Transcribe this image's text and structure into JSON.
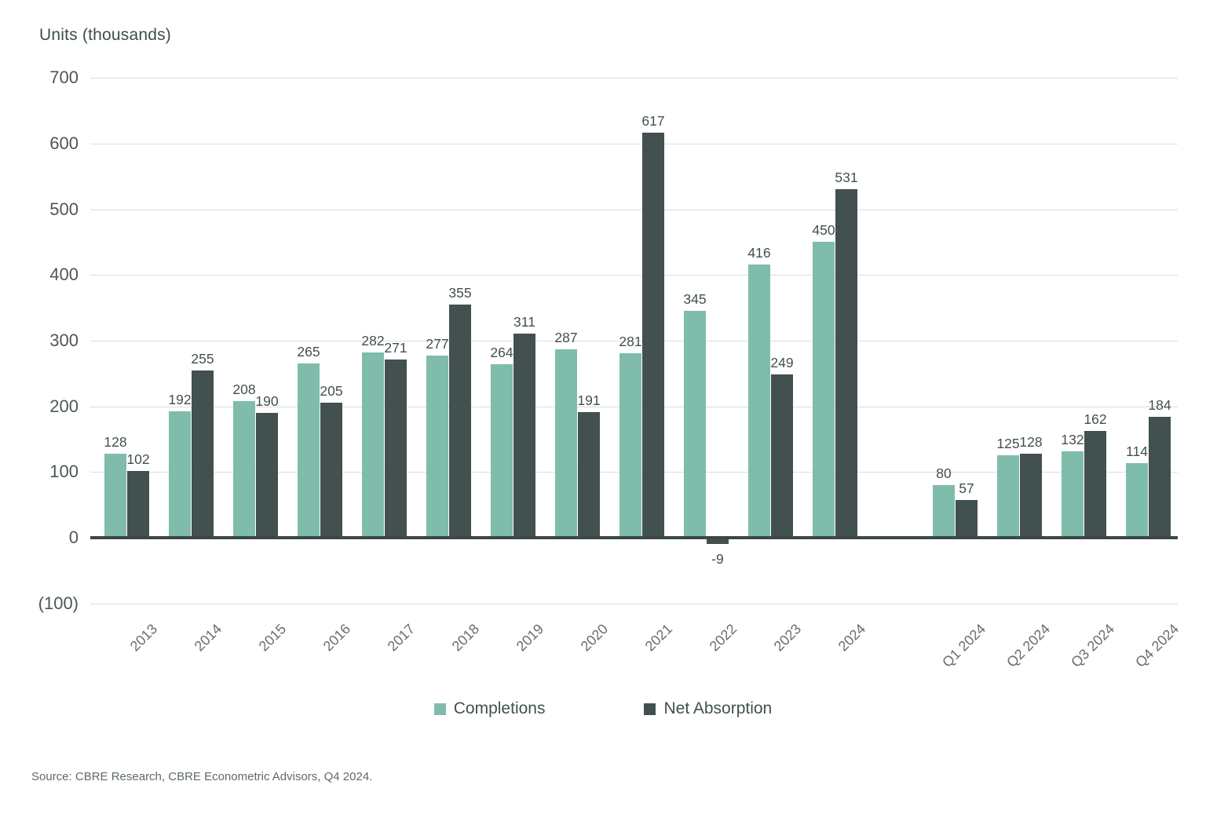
{
  "title": "Units (thousands)",
  "source": "Source: CBRE Research, CBRE Econometric Advisors, Q4 2024.",
  "legend": [
    {
      "label": "Completions",
      "color": "#7fbcac"
    },
    {
      "label": "Net Absorption",
      "color": "#42504f"
    }
  ],
  "chart_data": {
    "type": "bar",
    "title": "Units (thousands)",
    "ylabel": "Units (thousands)",
    "xlabel": "",
    "ylim": [
      -100,
      700
    ],
    "grid": true,
    "legend_position": "bottom",
    "yticks": [
      {
        "value": 700,
        "label": "700"
      },
      {
        "value": 600,
        "label": "600"
      },
      {
        "value": 500,
        "label": "500"
      },
      {
        "value": 400,
        "label": "400"
      },
      {
        "value": 300,
        "label": "300"
      },
      {
        "value": 200,
        "label": "200"
      },
      {
        "value": 100,
        "label": "100"
      },
      {
        "value": 0,
        "label": "0"
      },
      {
        "value": -100,
        "label": "(100)"
      }
    ],
    "categories": [
      "2013",
      "2014",
      "2015",
      "2016",
      "2017",
      "2018",
      "2019",
      "2020",
      "2021",
      "2022",
      "2023",
      "2024",
      "Q1 2024",
      "Q2 2024",
      "Q3 2024",
      "Q4 2024"
    ],
    "quarterly_group_start_index": 12,
    "series": [
      {
        "name": "Completions",
        "color": "#7fbcac",
        "values": [
          128,
          192,
          208,
          265,
          282,
          277,
          264,
          287,
          281,
          345,
          416,
          450,
          80,
          125,
          132,
          114
        ]
      },
      {
        "name": "Net Absorption",
        "color": "#42504f",
        "values": [
          102,
          255,
          190,
          205,
          271,
          355,
          311,
          191,
          617,
          -9,
          249,
          531,
          57,
          128,
          162,
          184
        ]
      }
    ]
  }
}
